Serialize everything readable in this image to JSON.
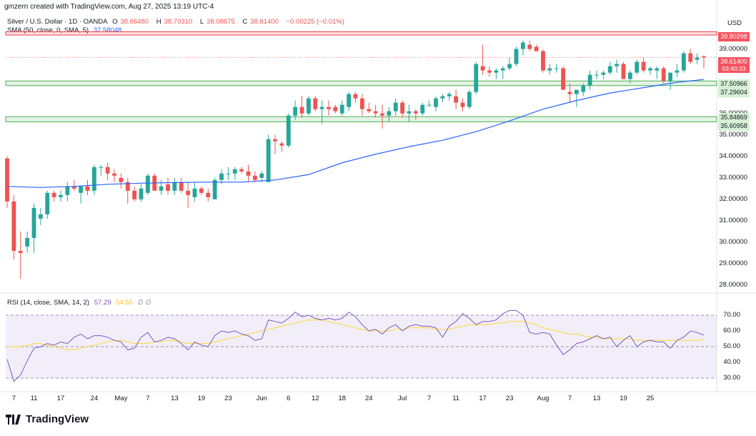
{
  "header": {
    "created_by": "gmzern created with TradingView.com, Aug 27, 2025 13:19 UTC-4"
  },
  "legend": {
    "symbol": "Silver / U.S. Dollar · 1D · OANDA",
    "open_label": "O",
    "open": "38.66480",
    "high_label": "H",
    "high": "38.70310",
    "low_label": "L",
    "low": "38.08675",
    "close_label": "C",
    "close": "38.61400",
    "change": "−0.00225 (−0.01%)",
    "sma_label": "SMA (50, close, 0, SMA, 5)",
    "sma_value": "37.58048"
  },
  "rsi_legend": {
    "label": "RSI (14, close, SMA, 14, 2)",
    "rsi": "57.29",
    "sma": "54.55",
    "extra": "∅ ∅"
  },
  "currency": "USD",
  "price_axis": [
    "39.00000",
    "38.00000",
    "37.00000",
    "36.00000",
    "35.00000",
    "34.00000",
    "33.00000",
    "32.00000",
    "31.00000",
    "30.00000",
    "29.00000",
    "28.00000"
  ],
  "rsi_axis": [
    "70.00",
    "60.00",
    "50.00",
    "40.00",
    "30.00"
  ],
  "badges": {
    "resistance": "39.80298",
    "last_price": "38.61400",
    "countdown": "03:40:33",
    "support_1a": "37.50966",
    "support_1b": "37.29604",
    "support_2a": "35.84869",
    "support_2b": "35.60958"
  },
  "x_axis": [
    "7",
    "11",
    "17",
    "24",
    "May",
    "7",
    "13",
    "19",
    "23",
    "Jun",
    "6",
    "12",
    "18",
    "24",
    "Jul",
    "7",
    "11",
    "17",
    "23",
    "Aug",
    "7",
    "13",
    "19",
    "25"
  ],
  "footer": {
    "brand": "TradingView"
  },
  "colors": {
    "up": "#26a69a",
    "down": "#ef5350",
    "sma": "#2962ff",
    "rsi": "#7e57c2",
    "rsi_sma": "#fdd835",
    "zone_green": "#4caf50",
    "zone_red": "#f23645"
  },
  "chart_data": {
    "type": "candlestick",
    "ylim": [
      27.7,
      39.95
    ],
    "levels": {
      "resistance": [
        39.80298,
        39.65
      ],
      "support_1": [
        37.50966,
        37.29604
      ],
      "support_2": [
        35.84869,
        35.60958
      ]
    },
    "candles": [
      [
        33.9,
        34.0,
        31.6,
        31.9
      ],
      [
        31.9,
        32.2,
        29.2,
        29.6
      ],
      [
        29.6,
        30.5,
        28.3,
        29.5
      ],
      [
        29.8,
        30.5,
        29.5,
        30.2
      ],
      [
        30.2,
        31.8,
        29.5,
        31.6
      ],
      [
        31.1,
        31.6,
        30.8,
        31.3
      ],
      [
        31.3,
        32.4,
        31.1,
        32.3
      ],
      [
        32.3,
        32.4,
        31.9,
        32.1
      ],
      [
        32.1,
        32.4,
        31.9,
        32.2
      ],
      [
        32.2,
        32.8,
        31.9,
        32.6
      ],
      [
        32.6,
        32.9,
        32.4,
        32.5
      ],
      [
        32.3,
        32.6,
        31.8,
        32.6
      ],
      [
        32.6,
        32.9,
        32.2,
        32.4
      ],
      [
        32.4,
        33.6,
        32.2,
        33.5
      ],
      [
        33.5,
        33.6,
        33.1,
        33.5
      ],
      [
        33.5,
        33.7,
        32.9,
        33.2
      ],
      [
        33.2,
        33.4,
        32.8,
        33.1
      ],
      [
        33.0,
        33.2,
        32.5,
        32.8
      ],
      [
        32.8,
        33.0,
        31.8,
        32.4
      ],
      [
        32.4,
        32.6,
        31.9,
        32.0
      ],
      [
        32.0,
        32.7,
        31.9,
        32.5
      ],
      [
        32.3,
        33.2,
        32.2,
        33.1
      ],
      [
        33.1,
        33.2,
        32.5,
        32.4
      ],
      [
        32.4,
        32.9,
        32.2,
        32.6
      ],
      [
        32.7,
        33.0,
        32.2,
        32.4
      ],
      [
        32.4,
        33.0,
        32.2,
        32.8
      ],
      [
        32.8,
        33.0,
        32.3,
        32.4
      ],
      [
        32.4,
        32.8,
        31.6,
        32.2
      ],
      [
        32.1,
        32.8,
        31.9,
        32.5
      ],
      [
        32.5,
        32.6,
        32.2,
        32.3
      ],
      [
        32.3,
        32.5,
        31.9,
        32.1
      ],
      [
        32.0,
        33.0,
        32.0,
        32.9
      ],
      [
        32.9,
        33.4,
        32.7,
        33.2
      ],
      [
        33.2,
        33.5,
        32.9,
        33.2
      ],
      [
        33.2,
        33.5,
        32.9,
        33.4
      ],
      [
        33.4,
        33.5,
        33.2,
        33.3
      ],
      [
        33.3,
        33.6,
        32.8,
        33.1
      ],
      [
        33.1,
        33.3,
        32.8,
        32.9
      ],
      [
        33.0,
        33.3,
        32.8,
        33.2
      ],
      [
        32.8,
        35.0,
        32.8,
        34.8
      ],
      [
        34.8,
        35.0,
        34.1,
        34.7
      ],
      [
        34.6,
        34.7,
        34.2,
        34.5
      ],
      [
        34.5,
        36.0,
        34.4,
        35.9
      ],
      [
        35.9,
        36.6,
        35.7,
        36.3
      ],
      [
        36.3,
        36.8,
        35.8,
        36.0
      ],
      [
        36.0,
        36.8,
        35.9,
        36.7
      ],
      [
        36.7,
        36.8,
        36.1,
        36.2
      ],
      [
        36.2,
        36.6,
        35.5,
        36.3
      ],
      [
        36.3,
        36.6,
        35.9,
        36.2
      ],
      [
        36.3,
        36.4,
        36.0,
        36.1
      ],
      [
        36.0,
        36.6,
        35.9,
        36.4
      ],
      [
        36.3,
        37.0,
        36.1,
        36.9
      ],
      [
        36.9,
        37.0,
        36.5,
        36.7
      ],
      [
        36.7,
        36.9,
        35.9,
        36.2
      ],
      [
        36.2,
        36.5,
        36.0,
        36.1
      ],
      [
        36.1,
        36.4,
        35.8,
        36.0
      ],
      [
        36.0,
        36.4,
        35.3,
        35.9
      ],
      [
        35.9,
        36.3,
        35.6,
        36.1
      ],
      [
        36.1,
        36.7,
        35.9,
        36.5
      ],
      [
        36.5,
        36.6,
        35.8,
        36.0
      ],
      [
        36.0,
        36.4,
        35.6,
        36.1
      ],
      [
        36.1,
        36.2,
        35.7,
        36.0
      ],
      [
        36.0,
        36.5,
        35.9,
        36.4
      ],
      [
        36.4,
        36.6,
        36.3,
        36.4
      ],
      [
        36.3,
        36.8,
        36.1,
        36.7
      ],
      [
        36.7,
        36.9,
        36.5,
        36.8
      ],
      [
        36.8,
        37.0,
        36.6,
        36.9
      ],
      [
        36.8,
        37.1,
        36.2,
        36.5
      ],
      [
        36.5,
        36.7,
        36.1,
        36.3
      ],
      [
        36.3,
        37.1,
        36.2,
        37.0
      ],
      [
        37.0,
        38.4,
        36.9,
        38.3
      ],
      [
        38.2,
        39.2,
        37.8,
        38.0
      ],
      [
        38.0,
        38.2,
        37.7,
        37.9
      ],
      [
        37.9,
        38.1,
        37.6,
        38.0
      ],
      [
        38.0,
        38.2,
        37.6,
        38.1
      ],
      [
        38.1,
        38.6,
        38.0,
        38.3
      ],
      [
        38.3,
        39.1,
        38.2,
        39.0
      ],
      [
        39.0,
        39.4,
        38.7,
        39.3
      ],
      [
        39.2,
        39.4,
        38.9,
        39.0
      ],
      [
        39.1,
        39.2,
        38.9,
        38.9
      ],
      [
        38.9,
        39.0,
        37.9,
        38.0
      ],
      [
        38.0,
        38.3,
        37.8,
        38.1
      ],
      [
        38.1,
        38.3,
        37.9,
        38.1
      ],
      [
        38.1,
        38.2,
        37.1,
        37.1
      ],
      [
        37.0,
        37.4,
        36.5,
        36.9
      ],
      [
        36.9,
        37.1,
        36.3,
        37.1
      ],
      [
        37.0,
        37.4,
        36.8,
        37.3
      ],
      [
        37.3,
        38.0,
        37.1,
        37.8
      ],
      [
        37.8,
        38.0,
        37.6,
        37.8
      ],
      [
        37.8,
        38.0,
        37.6,
        37.9
      ],
      [
        37.9,
        38.4,
        37.8,
        38.2
      ],
      [
        38.2,
        38.5,
        37.9,
        38.3
      ],
      [
        38.3,
        38.4,
        37.6,
        37.6
      ],
      [
        37.6,
        38.0,
        37.4,
        37.9
      ],
      [
        37.9,
        38.5,
        37.8,
        38.4
      ],
      [
        38.4,
        38.6,
        37.9,
        38.0
      ],
      [
        38.0,
        38.2,
        37.8,
        38.1
      ],
      [
        38.0,
        38.2,
        37.6,
        38.1
      ],
      [
        38.1,
        38.2,
        37.4,
        37.5
      ],
      [
        37.5,
        37.9,
        37.1,
        37.9
      ],
      [
        37.9,
        38.3,
        37.7,
        38.0
      ],
      [
        38.0,
        38.9,
        37.9,
        38.8
      ],
      [
        38.8,
        39.0,
        38.3,
        38.4
      ],
      [
        38.5,
        38.8,
        38.3,
        38.6
      ],
      [
        38.66,
        38.7,
        38.09,
        38.61
      ]
    ],
    "sma50": [
      [
        0,
        32.6
      ],
      [
        5,
        32.55
      ],
      [
        10,
        32.6
      ],
      [
        15,
        32.7
      ],
      [
        20,
        32.75
      ],
      [
        25,
        32.78
      ],
      [
        30,
        32.8
      ],
      [
        35,
        32.8
      ],
      [
        40,
        32.9
      ],
      [
        45,
        33.15
      ],
      [
        50,
        33.7
      ],
      [
        55,
        34.1
      ],
      [
        60,
        34.45
      ],
      [
        65,
        34.75
      ],
      [
        70,
        35.15
      ],
      [
        75,
        35.65
      ],
      [
        80,
        36.2
      ],
      [
        85,
        36.6
      ],
      [
        90,
        36.95
      ],
      [
        95,
        37.2
      ],
      [
        100,
        37.45
      ],
      [
        104,
        37.58
      ]
    ],
    "rsi": [
      42,
      28,
      32,
      41,
      49,
      50,
      52,
      51,
      53,
      52,
      56,
      58,
      55,
      57,
      57,
      56,
      54,
      53,
      48,
      49,
      56,
      59,
      53,
      54,
      56,
      55,
      52,
      48,
      53,
      51,
      50,
      57,
      60,
      59,
      60,
      58,
      57,
      54,
      55,
      67,
      66,
      65,
      68,
      72,
      69,
      70,
      68,
      67,
      68,
      67,
      68,
      72,
      69,
      64,
      60,
      61,
      58,
      62,
      64,
      60,
      63,
      64,
      63,
      63,
      62,
      56,
      63,
      66,
      71,
      68,
      64,
      66,
      66,
      67,
      71,
      73,
      73,
      70,
      59,
      58,
      59,
      58,
      51,
      45,
      48,
      52,
      53,
      55,
      57,
      55,
      56,
      50,
      54,
      57,
      50,
      53,
      54,
      53,
      53,
      49,
      54,
      56,
      60,
      59,
      57.3
    ],
    "rsi_sma": [
      50,
      50,
      50,
      51,
      52,
      52,
      51,
      50,
      49,
      48,
      48,
      49,
      50,
      51,
      52,
      53,
      54,
      54,
      53,
      52,
      52,
      52,
      53,
      53,
      54,
      54,
      53,
      52,
      52,
      52,
      52,
      53,
      54,
      55,
      56,
      57,
      58,
      59,
      60,
      61,
      62,
      63,
      64,
      65,
      66,
      67,
      67,
      67,
      66,
      65,
      64,
      63,
      62,
      61,
      60,
      60,
      60,
      60,
      61,
      61,
      62,
      62,
      62,
      62,
      61,
      61,
      61,
      62,
      63,
      64,
      64,
      64,
      64,
      65,
      65,
      66,
      66,
      66,
      65,
      64,
      62,
      61,
      60,
      59,
      58,
      58,
      57,
      56,
      56,
      55,
      55,
      55,
      55,
      55,
      54,
      54,
      54,
      54,
      54,
      54,
      54,
      54,
      54,
      54,
      54.55
    ],
    "rsi_ylim": [
      25,
      75
    ],
    "x_ticks": [
      {
        "label": "7",
        "i": 1
      },
      {
        "label": "11",
        "i": 4
      },
      {
        "label": "17",
        "i": 8
      },
      {
        "label": "24",
        "i": 13
      },
      {
        "label": "May",
        "i": 17
      },
      {
        "label": "7",
        "i": 21
      },
      {
        "label": "13",
        "i": 25
      },
      {
        "label": "19",
        "i": 29
      },
      {
        "label": "23",
        "i": 33
      },
      {
        "label": "Jun",
        "i": 38
      },
      {
        "label": "6",
        "i": 42
      },
      {
        "label": "12",
        "i": 46
      },
      {
        "label": "18",
        "i": 50
      },
      {
        "label": "24",
        "i": 54
      },
      {
        "label": "Jul",
        "i": 59
      },
      {
        "label": "7",
        "i": 63
      },
      {
        "label": "11",
        "i": 67
      },
      {
        "label": "17",
        "i": 71
      },
      {
        "label": "23",
        "i": 75
      },
      {
        "label": "Aug",
        "i": 80
      },
      {
        "label": "7",
        "i": 84
      },
      {
        "label": "13",
        "i": 88
      },
      {
        "label": "19",
        "i": 92
      },
      {
        "label": "25",
        "i": 96
      }
    ]
  }
}
